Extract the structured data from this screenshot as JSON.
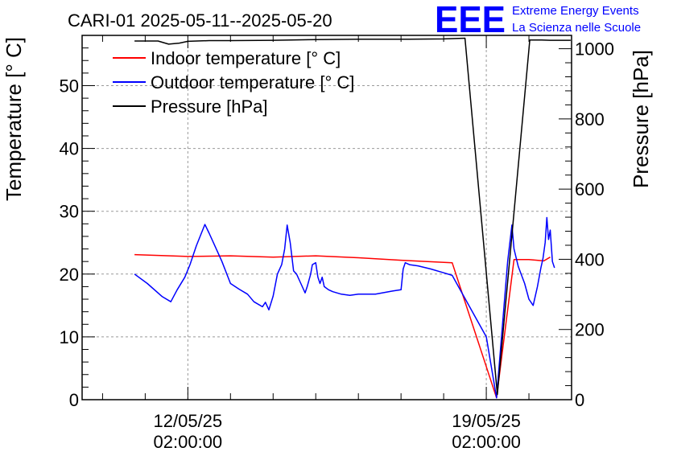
{
  "chart_data": {
    "type": "line",
    "title": "CARI-01 2025-05-11--2025-05-20",
    "ylabel": "Temperature [° C]",
    "y2label": "Pressure [hPa]",
    "ylim": [
      0,
      58
    ],
    "y2lim": [
      0,
      1038
    ],
    "yticks": [
      "0",
      "10",
      "20",
      "30",
      "40",
      "50"
    ],
    "y2ticks": [
      "0",
      "200",
      "400",
      "600",
      "800",
      "1000"
    ],
    "xticks": [
      {
        "date": "12/05/25",
        "time": "02:00:00",
        "t": 1
      },
      {
        "date": "19/05/25",
        "time": "02:00:00",
        "t": 8
      }
    ],
    "xlim": [
      -1.48,
      10.0
    ],
    "legend": [
      "Indoor temperature [° C]",
      "Outdoor temperature [° C]",
      "Pressure [hPa]"
    ],
    "series": [
      {
        "name": "Indoor temperature [° C]",
        "color": "#ff0000",
        "axis": "left",
        "x": [
          -0.25,
          1.0,
          2.0,
          3.0,
          4.0,
          5.0,
          6.0,
          7.2,
          8.24,
          8.65,
          9.0,
          9.35,
          9.5
        ],
        "y": [
          23.1,
          22.8,
          22.9,
          22.7,
          22.9,
          22.6,
          22.2,
          21.8,
          0.3,
          22.3,
          22.3,
          22.1,
          22.7
        ]
      },
      {
        "name": "Outdoor temperature [° C]",
        "color": "#0000ff",
        "axis": "left",
        "x": [
          -0.25,
          0.05,
          0.4,
          0.6,
          0.75,
          0.93,
          1.05,
          1.2,
          1.4,
          1.5,
          1.6,
          1.8,
          2.0,
          2.2,
          2.4,
          2.55,
          2.75,
          2.82,
          2.9,
          3.0,
          3.1,
          3.2,
          3.27,
          3.33,
          3.4,
          3.48,
          3.55,
          3.65,
          3.75,
          3.8,
          3.88,
          3.92,
          4.0,
          4.05,
          4.1,
          4.15,
          4.2,
          4.3,
          4.4,
          4.6,
          4.8,
          5.0,
          5.4,
          5.8,
          6.0,
          6.05,
          6.1,
          6.2,
          6.4,
          6.7,
          7.0,
          7.2,
          8.0,
          8.24,
          8.5,
          8.6,
          8.65,
          8.75,
          8.9,
          9.0,
          9.1,
          9.2,
          9.28,
          9.33,
          9.38,
          9.42,
          9.46,
          9.5,
          9.55,
          9.6
        ],
        "y": [
          20.0,
          18.5,
          16.4,
          15.6,
          17.5,
          19.5,
          21.5,
          24.5,
          27.9,
          26.5,
          25.0,
          22.0,
          18.5,
          17.6,
          16.8,
          15.6,
          14.8,
          15.5,
          14.3,
          16.5,
          20.0,
          21.5,
          24.0,
          27.8,
          25.0,
          20.5,
          20.0,
          18.5,
          17.0,
          18.0,
          20.0,
          21.5,
          21.8,
          19.5,
          18.5,
          19.5,
          18.0,
          17.5,
          17.2,
          16.8,
          16.6,
          16.8,
          16.8,
          17.3,
          17.5,
          20.8,
          21.8,
          21.5,
          21.3,
          20.8,
          20.2,
          19.8,
          10.0,
          0.3,
          22.0,
          27.8,
          24.0,
          21.2,
          18.5,
          16.0,
          15.0,
          18.0,
          21.0,
          22.5,
          25.0,
          29.0,
          25.5,
          27.0,
          22.0,
          21.0
        ]
      },
      {
        "name": "Pressure [hPa]",
        "color": "#000000",
        "axis": "right",
        "x": [
          -0.25,
          0.3,
          0.55,
          0.8,
          1.0,
          1.5,
          2.0,
          3.0,
          4.0,
          5.0,
          6.0,
          7.0,
          7.5,
          8.26,
          9.02,
          9.3,
          9.5,
          9.98
        ],
        "y": [
          1022,
          1022,
          1013,
          1016,
          1021,
          1023,
          1023,
          1024,
          1026,
          1027,
          1027,
          1028,
          1030,
          15,
          1025,
          1025,
          1024,
          1024
        ]
      }
    ]
  },
  "branding": {
    "logo": "EEE",
    "line1": "Extreme Energy Events",
    "line2": "La Scienza nelle Scuole",
    "color": "#0000ff"
  }
}
